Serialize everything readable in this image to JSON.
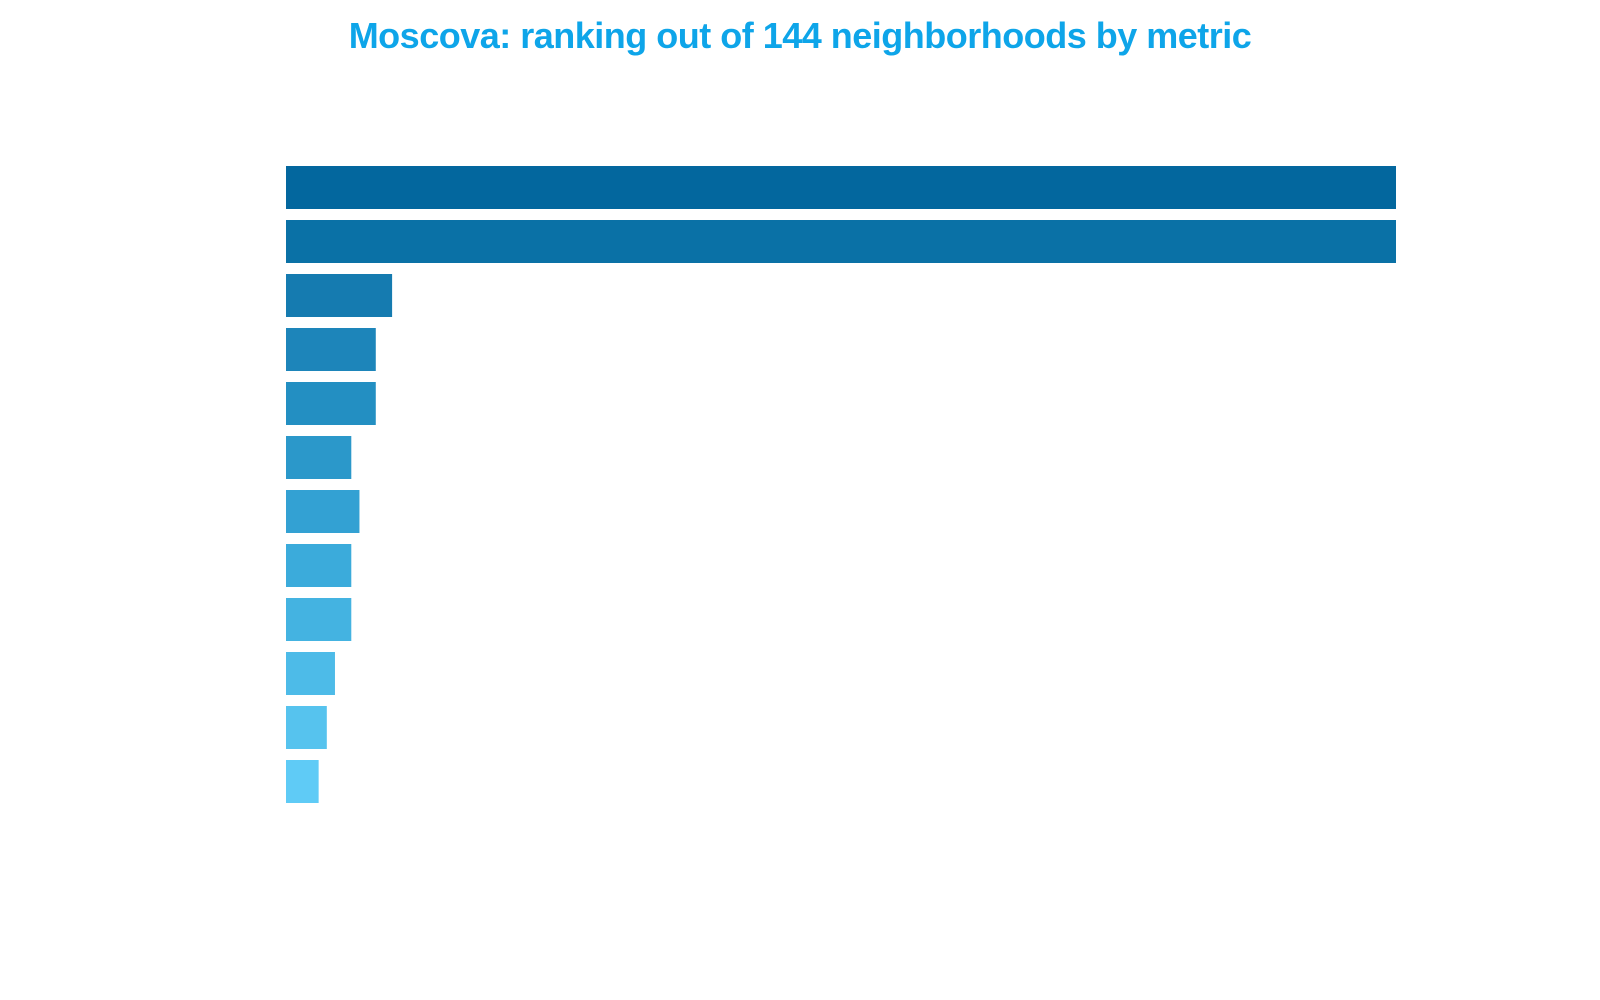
{
  "chart_data": {
    "type": "bar",
    "orientation": "horizontal",
    "title": "Moscova: ranking out of 144 neighborhoods by metric",
    "title_color": "#0EA5E9",
    "xlabel": "",
    "ylabel": "",
    "xlim": [
      0,
      136
    ],
    "grid": false,
    "legend": "none",
    "values": [
      136,
      136,
      13,
      11,
      11,
      8,
      9,
      8,
      8,
      6,
      5,
      4
    ],
    "colors": [
      "#03679E",
      "#0A71A6",
      "#157BB0",
      "#1D85BA",
      "#238FC2",
      "#2B98CA",
      "#33A1D3",
      "#3BABDB",
      "#44B3E1",
      "#4DBBE8",
      "#56C3EE",
      "#5FCBF6"
    ]
  }
}
